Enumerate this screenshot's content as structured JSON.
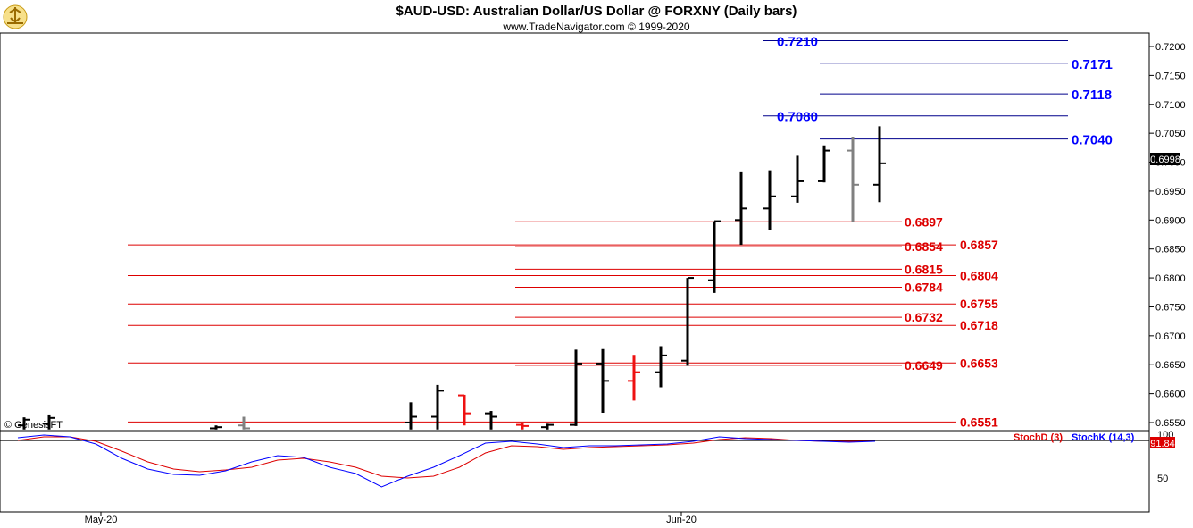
{
  "header": {
    "title": "$AUD-USD:  Australian Dollar/US Dollar @ FORXNY  (Daily bars)",
    "subtitle": "www.TradeNavigator.com © 1999-2020",
    "watermark": "© GenesisFT",
    "logo_icon": "trade-navigator-logo-icon"
  },
  "price_axis": {
    "ticks": [
      "0.7200",
      "0.7150",
      "0.7100",
      "0.7050",
      "0.7000",
      "0.6950",
      "0.6900",
      "0.6850",
      "0.6800",
      "0.6750",
      "0.6700",
      "0.6650",
      "0.6600",
      "0.6550"
    ],
    "last_price": "0.6998"
  },
  "time_axis": {
    "labels": [
      "May-20",
      "Jun-20"
    ]
  },
  "stoch": {
    "legend_d": "StochD (3)",
    "legend_k": "StochK (14,3)",
    "tick_100": "100",
    "tick_50": "50",
    "last_value": "91.84"
  },
  "colors": {
    "blue": "#0000ff",
    "red": "#dd0000",
    "navy": "#00008b",
    "bar_black": "#000000",
    "bar_red": "#ee1111",
    "bar_gray": "#808080"
  },
  "chart_data": {
    "type": "ohlc",
    "title": "$AUD-USD:  Australian Dollar/US Dollar @ FORXNY  (Daily bars)",
    "ylim": [
      0.6538,
      0.7225
    ],
    "blue_levels": [
      {
        "value": 0.721,
        "label": "0.7210"
      },
      {
        "value": 0.7171,
        "label": "0.7171"
      },
      {
        "value": 0.7118,
        "label": "0.7118"
      },
      {
        "value": 0.708,
        "label": "0.7080"
      },
      {
        "value": 0.704,
        "label": "0.7040"
      }
    ],
    "red_levels": [
      {
        "value": 0.6897,
        "label": "0.6897"
      },
      {
        "value": 0.6857,
        "label": "0.6857"
      },
      {
        "value": 0.6854,
        "label": "0.6854"
      },
      {
        "value": 0.6815,
        "label": "0.6815"
      },
      {
        "value": 0.6804,
        "label": "0.6804"
      },
      {
        "value": 0.6784,
        "label": "0.6784"
      },
      {
        "value": 0.6755,
        "label": "0.6755"
      },
      {
        "value": 0.6732,
        "label": "0.6732"
      },
      {
        "value": 0.6718,
        "label": "0.6718"
      },
      {
        "value": 0.6653,
        "label": "0.6653"
      },
      {
        "value": 0.6649,
        "label": "0.6649"
      },
      {
        "value": 0.6551,
        "label": "0.6551"
      }
    ],
    "bars": [
      {
        "high": 0.6559,
        "low": 0.6538,
        "open": 0.6545,
        "close": 0.6555,
        "color": "black"
      },
      {
        "high": 0.6564,
        "low": 0.6538,
        "open": 0.6548,
        "close": 0.6558,
        "color": "black"
      },
      {
        "high": 0.6545,
        "low": 0.6538,
        "open": 0.654,
        "close": 0.6542,
        "color": "black"
      },
      {
        "high": 0.656,
        "low": 0.6538,
        "open": 0.6545,
        "close": 0.654,
        "color": "gray"
      },
      {
        "high": 0.6585,
        "low": 0.6538,
        "open": 0.655,
        "close": 0.656,
        "color": "black"
      },
      {
        "high": 0.6615,
        "low": 0.6538,
        "open": 0.656,
        "close": 0.6605,
        "color": "black"
      },
      {
        "high": 0.6598,
        "low": 0.6545,
        "open": 0.6597,
        "close": 0.6566,
        "color": "red"
      },
      {
        "high": 0.657,
        "low": 0.6538,
        "open": 0.6566,
        "close": 0.656,
        "color": "black"
      },
      {
        "high": 0.655,
        "low": 0.6538,
        "open": 0.6546,
        "close": 0.6544,
        "color": "red"
      },
      {
        "high": 0.6548,
        "low": 0.6538,
        "open": 0.6542,
        "close": 0.6546,
        "color": "black"
      },
      {
        "high": 0.6676,
        "low": 0.6544,
        "open": 0.6546,
        "close": 0.6652,
        "color": "black"
      },
      {
        "high": 0.6677,
        "low": 0.6567,
        "open": 0.6652,
        "close": 0.6622,
        "color": "black"
      },
      {
        "high": 0.6667,
        "low": 0.6588,
        "open": 0.6622,
        "close": 0.6637,
        "color": "red"
      },
      {
        "high": 0.6682,
        "low": 0.6611,
        "open": 0.6637,
        "close": 0.6666,
        "color": "black"
      },
      {
        "high": 0.68,
        "low": 0.6648,
        "open": 0.6657,
        "close": 0.68,
        "color": "black"
      },
      {
        "high": 0.6898,
        "low": 0.6774,
        "open": 0.6796,
        "close": 0.6898,
        "color": "black"
      },
      {
        "high": 0.6984,
        "low": 0.6857,
        "open": 0.69,
        "close": 0.692,
        "color": "black"
      },
      {
        "high": 0.6986,
        "low": 0.6882,
        "open": 0.692,
        "close": 0.6941,
        "color": "black"
      },
      {
        "high": 0.7011,
        "low": 0.693,
        "open": 0.6941,
        "close": 0.6967,
        "color": "black"
      },
      {
        "high": 0.7029,
        "low": 0.6965,
        "open": 0.6967,
        "close": 0.702,
        "color": "black"
      },
      {
        "high": 0.7044,
        "low": 0.6896,
        "open": 0.702,
        "close": 0.6961,
        "color": "gray"
      },
      {
        "high": 0.7062,
        "low": 0.6931,
        "open": 0.6961,
        "close": 0.6998,
        "color": "black"
      }
    ],
    "stoch": {
      "ylim": [
        30,
        100
      ],
      "k_series": {
        "name": "StochK (14,3)",
        "values": [
          95,
          98,
          96,
          88,
          72,
          60,
          54,
          53,
          58,
          68,
          75,
          73,
          62,
          55,
          40,
          52,
          62,
          75,
          89,
          91,
          88,
          84,
          86,
          86,
          87,
          88,
          91,
          96,
          94,
          93,
          92,
          91,
          90,
          91
        ]
      },
      "d_series": {
        "name": "StochD (3)",
        "values": [
          92,
          96,
          96,
          91,
          80,
          68,
          60,
          57,
          59,
          62,
          70,
          72,
          68,
          62,
          52,
          50,
          52,
          62,
          78,
          86,
          85,
          82,
          84,
          85,
          86,
          87,
          89,
          93,
          95,
          94,
          92,
          91,
          91,
          91
        ]
      }
    }
  }
}
